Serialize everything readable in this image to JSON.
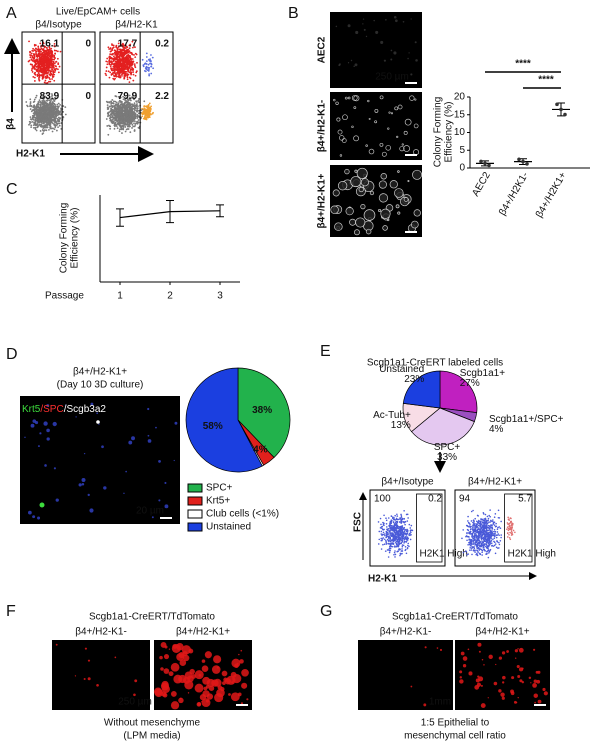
{
  "panelA": {
    "label": "A",
    "title": "Live/EpCAM+ cells",
    "yaxis": "β4",
    "xaxis": "H2-K1",
    "plots": [
      {
        "title": "β4/Isotype",
        "quadrants": [
          16.1,
          0,
          83.9,
          0
        ]
      },
      {
        "title": "β4/H2-K1",
        "quadrants": [
          17.7,
          0.2,
          79.9,
          2.2
        ]
      }
    ]
  },
  "panelB": {
    "label": "B",
    "images": [
      "AEC2",
      "β4+/H2-K1-",
      "β4+/H2-K1+"
    ],
    "scale": "250 µm",
    "ylabel": [
      "Colony Forming",
      "Efficiency (%)"
    ],
    "categories": [
      "AEC2",
      "β4+/H2K1-",
      "β4+/H2K1+"
    ],
    "values": [
      1.3,
      1.8,
      16.5
    ],
    "errors": [
      0.7,
      0.8,
      1.8
    ],
    "ylim": [
      0,
      20
    ],
    "yticks": [
      0,
      5,
      10,
      15,
      20
    ],
    "significance": [
      "****",
      "****"
    ]
  },
  "panelC": {
    "label": "C",
    "ylabel": [
      "Colony Forming",
      "Efficiency (%)"
    ],
    "xlabel": "Passage",
    "x": [
      1,
      2,
      3
    ],
    "values": [
      16.3,
      17.8,
      18
    ],
    "errors": [
      2.2,
      2.8,
      1.5
    ],
    "xlim": [
      0.6,
      3.4
    ],
    "ylim": [
      0,
      22
    ]
  },
  "panelD": {
    "label": "D",
    "title": [
      "β4+/H2-K1+",
      "(Day 10 3D culture)"
    ],
    "stain": [
      {
        "text": "Krt5",
        "color": "#3ddc3d"
      },
      {
        "text": "/SPC",
        "color": "#ff3030"
      },
      {
        "text": "/Scgb3a2",
        "color": "#ffffff"
      }
    ],
    "scale": "20 µm",
    "pie": [
      {
        "name": "SPC+",
        "value": 38,
        "label": "38%",
        "color": "#22b24c"
      },
      {
        "name": "Krt5+",
        "value": 4,
        "label": "4%",
        "color": "#e0201c"
      },
      {
        "name": "Club cells (<1%)",
        "value": 0.5,
        "color": "#ffffff"
      },
      {
        "name": "Unstained",
        "value": 58,
        "label": "58%",
        "color": "#1b3fe0"
      }
    ]
  },
  "panelE": {
    "label": "E",
    "title": "Scgb1a1-CreERT labeled cells",
    "pie": [
      {
        "name": "Scgb1a1+",
        "value": 27,
        "label": "27%",
        "color": "#c020c0"
      },
      {
        "name": "Scgb1a1+/SPC+",
        "value": 4,
        "label": "4%",
        "color": "#9a4fc0"
      },
      {
        "name": "SPC+",
        "value": 33,
        "label": "33%",
        "color": "#e4c8f0"
      },
      {
        "name": "Ac-Tub+",
        "value": 13,
        "label": "13%",
        "color": "#f8dde6"
      },
      {
        "name": "Unstained",
        "value": 23,
        "label": "23%",
        "color": "#1b3fe0"
      }
    ],
    "plots": [
      {
        "title": "β4+/Isotype",
        "left": 100,
        "right": 0.2
      },
      {
        "title": "β4+/H2-K1+",
        "left": 94,
        "right": 5.7
      }
    ],
    "gate": "H2K1 High",
    "yaxis": "FSC",
    "xaxis": "H2-K1"
  },
  "panelF": {
    "label": "F",
    "title": "Scgb1a1-CreERT/TdTomato",
    "images": [
      "β4+/H2-K1-",
      "β4+/H2-K1+"
    ],
    "scale": "250 µm",
    "caption": [
      "Without mesenchyme",
      "(LPM media)"
    ]
  },
  "panelG": {
    "label": "G",
    "title": "Scgb1a1-CreERT/TdTomato",
    "images": [
      "β4+/H2-K1-",
      "β4+/H2-K1+"
    ],
    "scale": "1mm",
    "caption": [
      "1:5 Epithelial to",
      "mesenchymal cell ratio"
    ]
  }
}
